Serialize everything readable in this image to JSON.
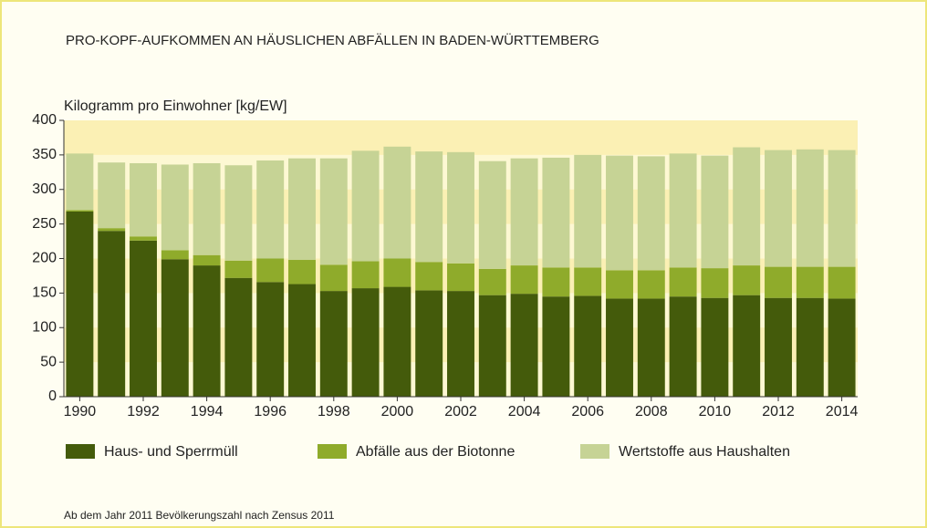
{
  "chart_data": {
    "type": "stacked_bar",
    "title": "PRO-KOPF-AUFKOMMEN AN HÄUSLICHEN ABFÄLLEN IN BADEN-WÜRTTEMBERG",
    "y_label": "Kilogramm pro Einwohner [kg/EW]",
    "footnote": "Ab dem Jahr 2011 Bevölkerungszahl nach Zensus 2011",
    "categories": [
      "1990",
      null,
      "1992",
      null,
      "1994",
      null,
      "1996",
      null,
      "1998",
      null,
      "2000",
      null,
      "2002",
      null,
      "2004",
      null,
      "2006",
      null,
      "2008",
      null,
      "2010",
      null,
      "2012",
      null,
      "2014"
    ],
    "series": [
      {
        "name": "Haus- und Sperrmüll",
        "color": "#445b0b",
        "values": [
          268,
          240,
          226,
          199,
          190,
          172,
          166,
          163,
          153,
          157,
          159,
          154,
          153,
          147,
          149,
          145,
          146,
          142,
          142,
          145,
          143,
          147,
          143,
          143,
          142
        ]
      },
      {
        "name": "Abfälle aus der Biotonne",
        "color": "#8fab2b",
        "values": [
          2,
          4,
          6,
          13,
          15,
          25,
          34,
          35,
          38,
          39,
          41,
          41,
          40,
          38,
          41,
          42,
          41,
          41,
          41,
          42,
          43,
          43,
          45,
          45,
          46
        ]
      },
      {
        "name": "Wertstoffe aus Haushalten",
        "color": "#c6d395",
        "values": [
          82,
          95,
          106,
          124,
          133,
          138,
          142,
          147,
          154,
          160,
          162,
          160,
          161,
          156,
          155,
          159,
          163,
          166,
          165,
          165,
          163,
          171,
          169,
          170,
          169
        ]
      }
    ],
    "ylim": [
      0,
      400
    ],
    "yticks": [
      0,
      50,
      100,
      150,
      200,
      250,
      300,
      350,
      400
    ]
  }
}
